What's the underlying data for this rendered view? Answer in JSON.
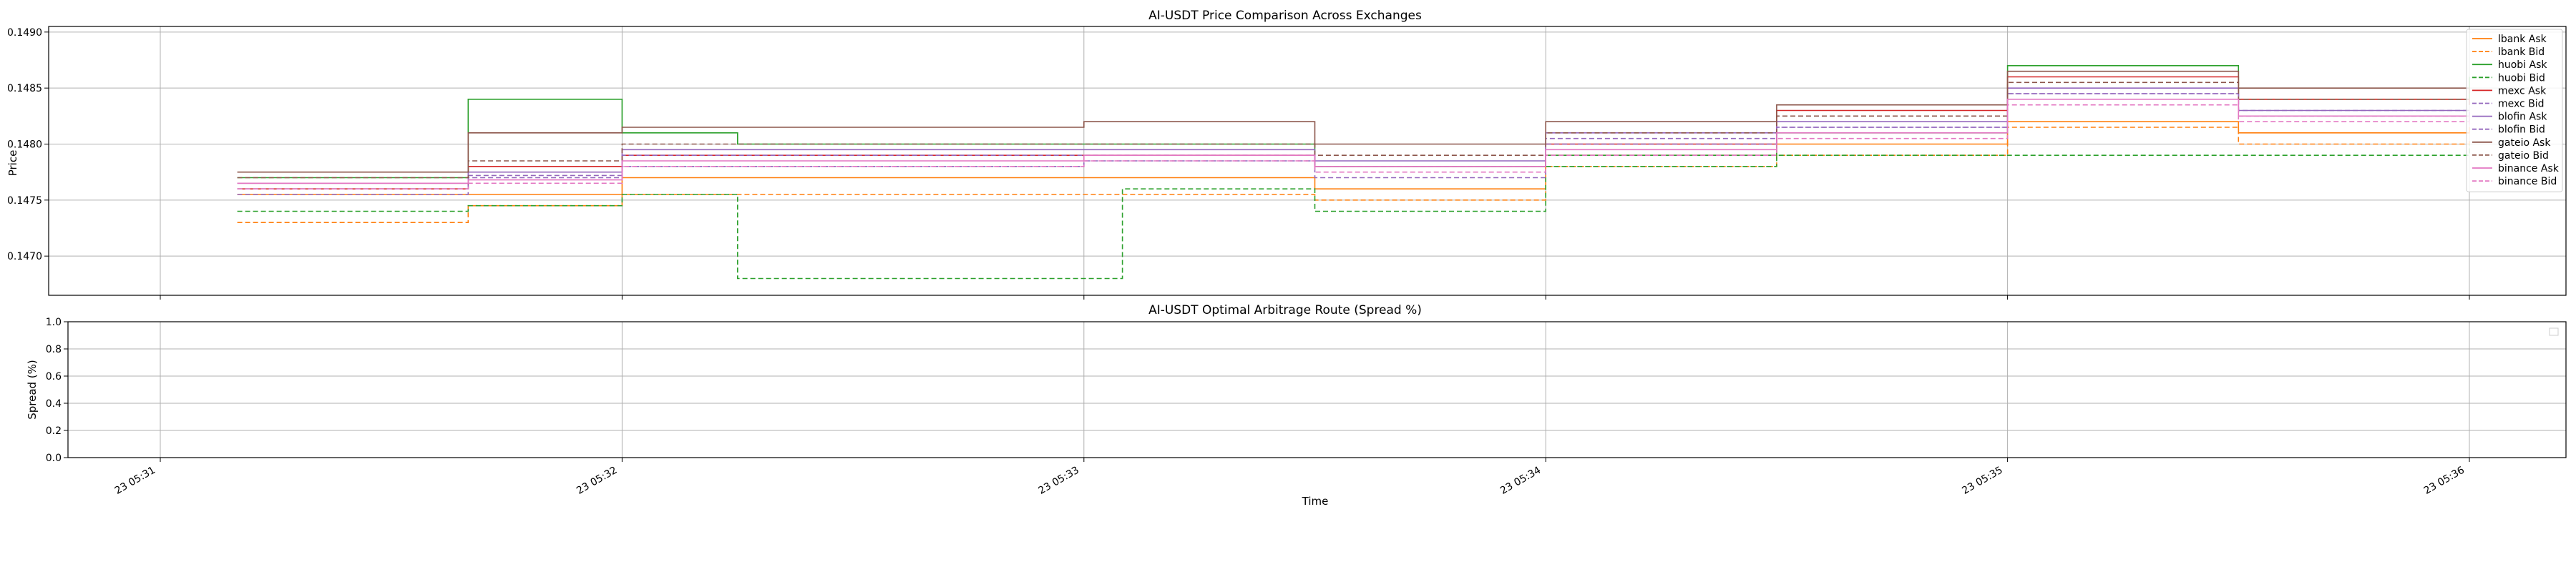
{
  "chart_data": [
    {
      "type": "line",
      "title": "AI-USDT Price Comparison Across Exchanges",
      "xlabel": "",
      "ylabel": "Price",
      "xlim": [
        "05:31:00",
        "05:36:08"
      ],
      "ylim": [
        0.14665,
        0.14905
      ],
      "yticks": [
        "0.1470",
        "0.1475",
        "0.1480",
        "0.1485",
        "0.1490"
      ],
      "ytick_values": [
        0.147,
        0.1475,
        0.148,
        0.1485,
        0.149
      ],
      "grid": true,
      "legend_position": "top-right",
      "series": [
        {
          "name": "lbank Ask",
          "color": "#ff7f0e",
          "dash": "solid",
          "points": [
            [
              "05:31:10",
              0.14755
            ],
            [
              "05:31:40",
              0.14755
            ],
            [
              "05:32:00",
              0.1477
            ],
            [
              "05:33:00",
              0.1477
            ],
            [
              "05:33:30",
              0.1476
            ],
            [
              "05:34:00",
              0.1479
            ],
            [
              "05:34:30",
              0.148
            ],
            [
              "05:35:00",
              0.1482
            ],
            [
              "05:35:30",
              0.1481
            ],
            [
              "05:36:00",
              0.14815
            ]
          ]
        },
        {
          "name": "lbank Bid",
          "color": "#ff7f0e",
          "dash": "dashed",
          "points": [
            [
              "05:31:10",
              0.1473
            ],
            [
              "05:31:40",
              0.14745
            ],
            [
              "05:32:00",
              0.14755
            ],
            [
              "05:33:00",
              0.14755
            ],
            [
              "05:33:30",
              0.1475
            ],
            [
              "05:34:00",
              0.1478
            ],
            [
              "05:34:30",
              0.1479
            ],
            [
              "05:35:00",
              0.14815
            ],
            [
              "05:35:30",
              0.148
            ],
            [
              "05:36:00",
              0.14805
            ]
          ]
        },
        {
          "name": "huobi Ask",
          "color": "#2ca02c",
          "dash": "solid",
          "points": [
            [
              "05:31:10",
              0.1477
            ],
            [
              "05:31:30",
              0.1477
            ],
            [
              "05:31:40",
              0.1484
            ],
            [
              "05:32:00",
              0.1481
            ],
            [
              "05:32:15",
              0.148
            ],
            [
              "05:33:00",
              0.148
            ],
            [
              "05:33:30",
              0.1478
            ],
            [
              "05:34:00",
              0.1479
            ],
            [
              "05:34:30",
              0.1481
            ],
            [
              "05:35:00",
              0.1487
            ],
            [
              "05:35:30",
              0.1484
            ],
            [
              "05:36:00",
              0.1486
            ]
          ]
        },
        {
          "name": "huobi Bid",
          "color": "#2ca02c",
          "dash": "dashed",
          "points": [
            [
              "05:31:10",
              0.1474
            ],
            [
              "05:31:40",
              0.14745
            ],
            [
              "05:32:00",
              0.14755
            ],
            [
              "05:32:15",
              0.1468
            ],
            [
              "05:33:00",
              0.1468
            ],
            [
              "05:33:05",
              0.1476
            ],
            [
              "05:33:30",
              0.1474
            ],
            [
              "05:34:00",
              0.1478
            ],
            [
              "05:34:30",
              0.1479
            ],
            [
              "05:35:00",
              0.1479
            ],
            [
              "05:35:30",
              0.1479
            ],
            [
              "05:36:00",
              0.148
            ]
          ]
        },
        {
          "name": "mexc Ask",
          "color": "#d62728",
          "dash": "solid",
          "points": [
            [
              "05:31:10",
              0.1476
            ],
            [
              "05:31:40",
              0.1478
            ],
            [
              "05:32:00",
              0.1479
            ],
            [
              "05:33:00",
              0.1479
            ],
            [
              "05:33:30",
              0.1478
            ],
            [
              "05:34:00",
              0.148
            ],
            [
              "05:34:30",
              0.1483
            ],
            [
              "05:35:00",
              0.1486
            ],
            [
              "05:35:30",
              0.1484
            ],
            [
              "05:36:00",
              0.14835
            ]
          ]
        },
        {
          "name": "mexc Bid",
          "color": "#9467bd",
          "dash": "dashed",
          "points": [
            [
              "05:31:10",
              0.14755
            ],
            [
              "05:31:40",
              0.1477
            ],
            [
              "05:32:00",
              0.1478
            ],
            [
              "05:33:00",
              0.14785
            ],
            [
              "05:33:30",
              0.1477
            ],
            [
              "05:34:00",
              0.148
            ],
            [
              "05:34:30",
              0.14815
            ],
            [
              "05:35:00",
              0.14845
            ],
            [
              "05:35:30",
              0.1483
            ],
            [
              "05:36:00",
              0.1482
            ]
          ]
        },
        {
          "name": "blofin Ask",
          "color": "#9467bd",
          "dash": "solid",
          "points": [
            [
              "05:31:10",
              0.14765
            ],
            [
              "05:31:40",
              0.14775
            ],
            [
              "05:32:00",
              0.14795
            ],
            [
              "05:33:00",
              0.14795
            ],
            [
              "05:33:30",
              0.14785
            ],
            [
              "05:34:00",
              0.1481
            ],
            [
              "05:34:30",
              0.1482
            ],
            [
              "05:35:00",
              0.1485
            ],
            [
              "05:35:30",
              0.1483
            ],
            [
              "05:36:00",
              0.1483
            ]
          ]
        },
        {
          "name": "blofin Bid",
          "color": "#9467bd",
          "dash": "dashed",
          "points": [
            [
              "05:31:10",
              0.1476
            ],
            [
              "05:31:40",
              0.14772
            ],
            [
              "05:32:00",
              0.1479
            ],
            [
              "05:33:00",
              0.1479
            ],
            [
              "05:33:30",
              0.1478
            ],
            [
              "05:34:00",
              0.14805
            ],
            [
              "05:34:30",
              0.14815
            ],
            [
              "05:35:00",
              0.14845
            ],
            [
              "05:35:30",
              0.14825
            ],
            [
              "05:36:00",
              0.14825
            ]
          ]
        },
        {
          "name": "gateio Ask",
          "color": "#8c564b",
          "dash": "solid",
          "points": [
            [
              "05:31:10",
              0.14775
            ],
            [
              "05:31:40",
              0.1481
            ],
            [
              "05:32:00",
              0.14815
            ],
            [
              "05:33:00",
              0.1482
            ],
            [
              "05:33:30",
              0.148
            ],
            [
              "05:34:00",
              0.1482
            ],
            [
              "05:34:30",
              0.14835
            ],
            [
              "05:35:00",
              0.14865
            ],
            [
              "05:35:30",
              0.1485
            ],
            [
              "05:36:00",
              0.14845
            ]
          ]
        },
        {
          "name": "gateio Bid",
          "color": "#8c564b",
          "dash": "dashed",
          "points": [
            [
              "05:31:10",
              0.1477
            ],
            [
              "05:31:40",
              0.14785
            ],
            [
              "05:32:00",
              0.148
            ],
            [
              "05:33:00",
              0.148
            ],
            [
              "05:33:30",
              0.1479
            ],
            [
              "05:34:00",
              0.1481
            ],
            [
              "05:34:30",
              0.14825
            ],
            [
              "05:35:00",
              0.14855
            ],
            [
              "05:35:30",
              0.1484
            ],
            [
              "05:36:00",
              0.14835
            ]
          ]
        },
        {
          "name": "binance Ask",
          "color": "#e377c2",
          "dash": "solid",
          "points": [
            [
              "05:31:10",
              0.14765
            ],
            [
              "05:31:40",
              0.14768
            ],
            [
              "05:32:00",
              0.14785
            ],
            [
              "05:33:00",
              0.1479
            ],
            [
              "05:33:30",
              0.1478
            ],
            [
              "05:34:00",
              0.14795
            ],
            [
              "05:34:30",
              0.1481
            ],
            [
              "05:35:00",
              0.1484
            ],
            [
              "05:35:30",
              0.14825
            ],
            [
              "05:36:00",
              0.1482
            ]
          ]
        },
        {
          "name": "binance Bid",
          "color": "#e377c2",
          "dash": "dashed",
          "points": [
            [
              "05:31:10",
              0.1476
            ],
            [
              "05:31:40",
              0.14765
            ],
            [
              "05:32:00",
              0.1478
            ],
            [
              "05:33:00",
              0.14785
            ],
            [
              "05:33:30",
              0.14775
            ],
            [
              "05:34:00",
              0.1479
            ],
            [
              "05:34:30",
              0.14805
            ],
            [
              "05:35:00",
              0.14835
            ],
            [
              "05:35:30",
              0.1482
            ],
            [
              "05:36:00",
              0.14815
            ]
          ]
        }
      ]
    },
    {
      "type": "line",
      "title": "AI-USDT Optimal Arbitrage Route (Spread %)",
      "xlabel": "Time",
      "ylabel": "Spread (%)",
      "xlim": [
        "05:31:00",
        "05:36:08"
      ],
      "ylim": [
        0.0,
        1.0
      ],
      "yticks": [
        "0.0",
        "0.2",
        "0.4",
        "0.6",
        "0.8",
        "1.0"
      ],
      "ytick_values": [
        0.0,
        0.2,
        0.4,
        0.6,
        0.8,
        1.0
      ],
      "grid": true,
      "series": []
    }
  ],
  "xticks": [
    "23 05:31",
    "23 05:32",
    "23 05:33",
    "23 05:34",
    "23 05:35",
    "23 05:36"
  ],
  "xtick_values": [
    "05:31:00",
    "05:32:00",
    "05:33:00",
    "05:34:00",
    "05:35:00",
    "05:36:00"
  ]
}
